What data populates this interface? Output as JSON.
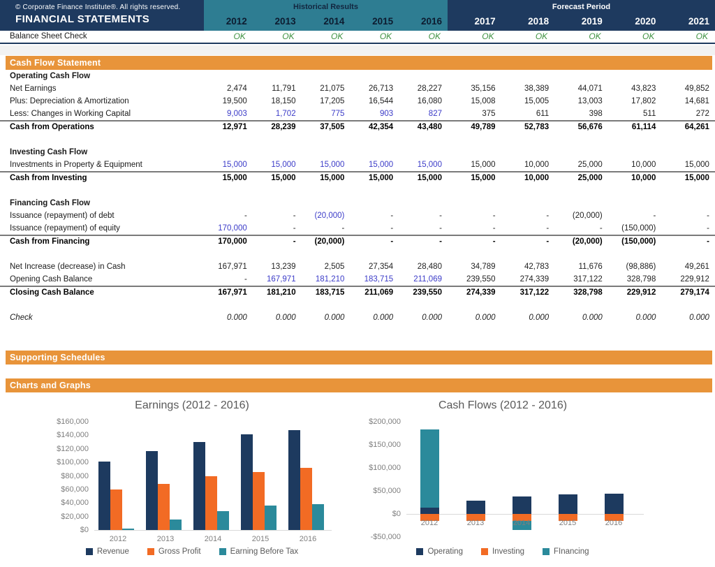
{
  "header": {
    "copyright": "© Corporate Finance Institute®. All rights reserved.",
    "title": "FINANCIAL STATEMENTS",
    "historical_label": "Historical Results",
    "forecast_label": "Forecast Period",
    "years_historical": [
      "2012",
      "2013",
      "2014",
      "2015",
      "2016"
    ],
    "years_forecast": [
      "2017",
      "2018",
      "2019",
      "2020",
      "2021"
    ],
    "balance_check_label": "Balance Sheet Check",
    "balance_check_values": [
      "OK",
      "OK",
      "OK",
      "OK",
      "OK",
      "OK",
      "OK",
      "OK",
      "OK",
      "OK"
    ]
  },
  "colors": {
    "navy": "#1e3a5f",
    "teal_header": "#2e7d92",
    "orange_section": "#e8943a",
    "input_blue": "#3b3bc8",
    "ok_green": "#3e9140",
    "bar_navy": "#1d3a5f",
    "bar_orange": "#f26b24",
    "bar_teal": "#2b8a9b"
  },
  "sections": {
    "cash_flow_header": "Cash Flow Statement",
    "supporting_header": "Supporting Schedules",
    "charts_header": "Charts and Graphs"
  },
  "table": {
    "rows": [
      {
        "type": "subhead",
        "label": "Operating Cash Flow",
        "values": [],
        "blue": []
      },
      {
        "type": "data",
        "label": "Net Earnings",
        "values": [
          "2,474",
          "11,791",
          "21,075",
          "26,713",
          "28,227",
          "35,156",
          "38,389",
          "44,071",
          "43,823",
          "49,852"
        ],
        "blue": []
      },
      {
        "type": "data",
        "label": "Plus: Depreciation & Amortization",
        "values": [
          "19,500",
          "18,150",
          "17,205",
          "16,544",
          "16,080",
          "15,008",
          "15,005",
          "13,003",
          "17,802",
          "14,681"
        ],
        "blue": []
      },
      {
        "type": "data",
        "label": "Less: Changes in Working Capital",
        "values": [
          "9,003",
          "1,702",
          "775",
          "903",
          "827",
          "375",
          "611",
          "398",
          "511",
          "272"
        ],
        "blue": [
          0,
          1,
          2,
          3,
          4
        ]
      },
      {
        "type": "total",
        "label": "Cash from Operations",
        "values": [
          "12,971",
          "28,239",
          "37,505",
          "42,354",
          "43,480",
          "49,789",
          "52,783",
          "56,676",
          "61,114",
          "64,261"
        ],
        "blue": []
      },
      {
        "type": "gap",
        "label": "",
        "values": [],
        "blue": []
      },
      {
        "type": "subhead",
        "label": "Investing Cash Flow",
        "values": [],
        "blue": []
      },
      {
        "type": "data",
        "label": "Investments in Property & Equipment",
        "values": [
          "15,000",
          "15,000",
          "15,000",
          "15,000",
          "15,000",
          "15,000",
          "10,000",
          "25,000",
          "10,000",
          "15,000"
        ],
        "blue": [
          0,
          1,
          2,
          3,
          4
        ]
      },
      {
        "type": "total",
        "label": "Cash from Investing",
        "values": [
          "15,000",
          "15,000",
          "15,000",
          "15,000",
          "15,000",
          "15,000",
          "10,000",
          "25,000",
          "10,000",
          "15,000"
        ],
        "blue": []
      },
      {
        "type": "gap",
        "label": "",
        "values": [],
        "blue": []
      },
      {
        "type": "subhead",
        "label": "Financing Cash Flow",
        "values": [],
        "blue": []
      },
      {
        "type": "data",
        "label": "Issuance (repayment) of debt",
        "values": [
          "-",
          "-",
          "(20,000)",
          "-",
          "-",
          "-",
          "-",
          "(20,000)",
          "-",
          "-"
        ],
        "blue": [
          2
        ]
      },
      {
        "type": "data",
        "label": "Issuance (repayment) of equity",
        "values": [
          "170,000",
          "-",
          "-",
          "-",
          "-",
          "-",
          "-",
          "-",
          "(150,000)",
          "-"
        ],
        "blue": [
          0
        ]
      },
      {
        "type": "total",
        "label": "Cash from Financing",
        "values": [
          "170,000",
          "-",
          "(20,000)",
          "-",
          "-",
          "-",
          "-",
          "(20,000)",
          "(150,000)",
          "-"
        ],
        "blue": []
      },
      {
        "type": "gap",
        "label": "",
        "values": [],
        "blue": []
      },
      {
        "type": "data",
        "label": "Net Increase (decrease) in Cash",
        "values": [
          "167,971",
          "13,239",
          "2,505",
          "27,354",
          "28,480",
          "34,789",
          "42,783",
          "11,676",
          "(98,886)",
          "49,261"
        ],
        "blue": []
      },
      {
        "type": "data",
        "label": "Opening Cash Balance",
        "values": [
          "-",
          "167,971",
          "181,210",
          "183,715",
          "211,069",
          "239,550",
          "274,339",
          "317,122",
          "328,798",
          "229,912"
        ],
        "blue": [
          1,
          2,
          3,
          4
        ]
      },
      {
        "type": "total",
        "label": "Closing Cash Balance",
        "values": [
          "167,971",
          "181,210",
          "183,715",
          "211,069",
          "239,550",
          "274,339",
          "317,122",
          "328,798",
          "229,912",
          "279,174"
        ],
        "blue": []
      },
      {
        "type": "gap",
        "label": "",
        "values": [],
        "blue": []
      },
      {
        "type": "check",
        "label": "Check",
        "values": [
          "0.000",
          "0.000",
          "0.000",
          "0.000",
          "0.000",
          "0.000",
          "0.000",
          "0.000",
          "0.000",
          "0.000"
        ],
        "blue": []
      }
    ]
  },
  "chart_data": [
    {
      "type": "bar",
      "stacked": false,
      "title": "Earnings (2012 - 2016)",
      "categories": [
        "2012",
        "2013",
        "2014",
        "2015",
        "2016"
      ],
      "series": [
        {
          "name": "Revenue",
          "color": "#1d3a5f",
          "values": [
            101000,
            117000,
            130000,
            141000,
            148000
          ]
        },
        {
          "name": "Gross Profit",
          "color": "#f26b24",
          "values": [
            60000,
            68000,
            80000,
            86000,
            92000
          ]
        },
        {
          "name": "Earning Before Tax",
          "color": "#2b8a9b",
          "values": [
            2500,
            15500,
            27500,
            36000,
            38000
          ]
        }
      ],
      "xlabel": "",
      "ylabel": "",
      "ylim": [
        0,
        160000
      ],
      "yticks": [
        "$160,000",
        "$140,000",
        "$120,000",
        "$100,000",
        "$80,000",
        "$60,000",
        "$40,000",
        "$20,000",
        "$0"
      ],
      "grid": false,
      "legend_position": "bottom"
    },
    {
      "type": "bar",
      "stacked": true,
      "title": "Cash Flows (2012 - 2016)",
      "categories": [
        "2012",
        "2013",
        "2014",
        "2015",
        "2016"
      ],
      "series": [
        {
          "name": "Operating",
          "color": "#1d3a5f",
          "values": [
            12971,
            28239,
            37505,
            42354,
            43480
          ]
        },
        {
          "name": "Investing",
          "color": "#f26b24",
          "values": [
            -15000,
            -15000,
            -15000,
            -15000,
            -15000
          ]
        },
        {
          "name": "FInancing",
          "color": "#2b8a9b",
          "values": [
            170000,
            0,
            -20000,
            0,
            0
          ]
        }
      ],
      "xlabel": "",
      "ylabel": "",
      "ylim": [
        -50000,
        200000
      ],
      "yticks": [
        "$200,000",
        "$150,000",
        "$100,000",
        "$50,000",
        "$0",
        "-$50,000"
      ],
      "grid": false,
      "legend_position": "bottom"
    }
  ]
}
